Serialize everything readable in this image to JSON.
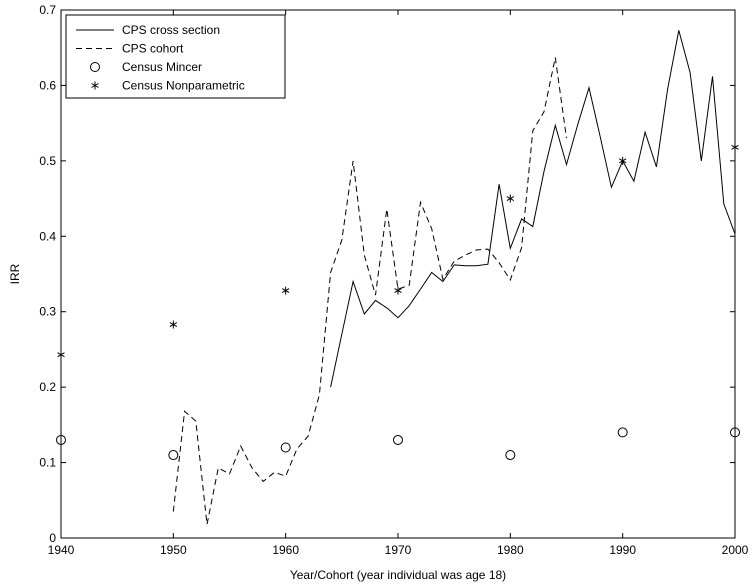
{
  "chart_data": {
    "type": "line",
    "title": "",
    "xlabel": "Year/Cohort (year individual was age 18)",
    "ylabel": "IRR",
    "xlim": [
      1940,
      2000
    ],
    "ylim": [
      0,
      0.7
    ],
    "x_ticks": [
      1940,
      1950,
      1960,
      1970,
      1980,
      1990,
      2000
    ],
    "x_tick_labels": [
      "1940",
      "1950",
      "1960",
      "1970",
      "1980",
      "1990",
      "2000"
    ],
    "y_ticks": [
      0,
      0.1,
      0.2,
      0.3,
      0.4,
      0.5,
      0.6,
      0.7
    ],
    "y_tick_labels": [
      "0",
      "0.1",
      "0.2",
      "0.3",
      "0.4",
      "0.5",
      "0.6",
      "0.7"
    ],
    "grid": false,
    "legend_position": "top-left",
    "series": [
      {
        "name": "CPS cross section",
        "style": "solid-line",
        "color": "#000000",
        "x": [
          1964,
          1965,
          1966,
          1967,
          1968,
          1969,
          1970,
          1971,
          1972,
          1973,
          1974,
          1975,
          1976,
          1977,
          1978,
          1979,
          1980,
          1981,
          1982,
          1983,
          1984,
          1985,
          1986,
          1987,
          1988,
          1989,
          1990,
          1991,
          1992,
          1993,
          1994,
          1995,
          1996,
          1997,
          1998,
          1999,
          2000
        ],
        "y": [
          0.2,
          0.27,
          0.34,
          0.297,
          0.315,
          0.305,
          0.292,
          0.308,
          0.33,
          0.352,
          0.34,
          0.362,
          0.361,
          0.361,
          0.363,
          0.469,
          0.384,
          0.423,
          0.413,
          0.486,
          0.547,
          0.495,
          0.548,
          0.597,
          0.532,
          0.465,
          0.5,
          0.473,
          0.538,
          0.492,
          0.595,
          0.673,
          0.617,
          0.5,
          0.612,
          0.443,
          0.403
        ]
      },
      {
        "name": "CPS cohort",
        "style": "dashed-line",
        "color": "#000000",
        "x": [
          1950,
          1951,
          1952,
          1953,
          1954,
          1955,
          1956,
          1957,
          1958,
          1959,
          1960,
          1961,
          1962,
          1963,
          1964,
          1965,
          1966,
          1967,
          1968,
          1969,
          1970,
          1971,
          1972,
          1973,
          1974,
          1975,
          1976,
          1977,
          1978,
          1979,
          1980,
          1981,
          1982,
          1983,
          1984,
          1985
        ],
        "y": [
          0.035,
          0.168,
          0.155,
          0.018,
          0.093,
          0.085,
          0.122,
          0.093,
          0.075,
          0.087,
          0.082,
          0.118,
          0.135,
          0.19,
          0.352,
          0.395,
          0.5,
          0.375,
          0.322,
          0.436,
          0.33,
          0.335,
          0.445,
          0.41,
          0.343,
          0.367,
          0.375,
          0.382,
          0.383,
          0.365,
          0.342,
          0.385,
          0.54,
          0.565,
          0.637,
          0.53
        ]
      },
      {
        "name": "Census Mincer",
        "style": "circle-marker",
        "color": "#000000",
        "x": [
          1940,
          1950,
          1960,
          1970,
          1980,
          1990,
          2000
        ],
        "y": [
          0.13,
          0.11,
          0.12,
          0.13,
          0.11,
          0.14,
          0.14
        ]
      },
      {
        "name": "Census Nonparametric",
        "style": "star-marker",
        "color": "#000000",
        "x": [
          1940,
          1950,
          1960,
          1970,
          1980,
          1990,
          2000
        ],
        "y": [
          0.243,
          0.283,
          0.328,
          0.328,
          0.45,
          0.5,
          0.518
        ]
      }
    ]
  }
}
